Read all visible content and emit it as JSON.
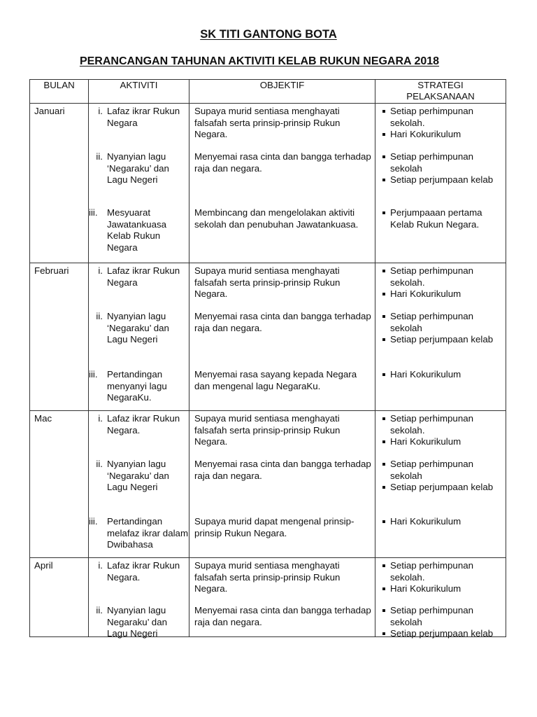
{
  "school": "SK TITI GANTONG BOTA",
  "title": "PERANCANGAN TAHUNAN AKTIVITI KELAB RUKUN NEGARA 2018",
  "headers": {
    "bulan": "BULAN",
    "aktiviti": "AKTIVITI",
    "objektif": "OBJEKTIF",
    "strategi": "STRATEGI PELAKSANAAN"
  },
  "rows": [
    {
      "month": "Januari",
      "items": [
        {
          "num": "i.",
          "activity": "Lafaz  ikrar Rukun Negara",
          "objective": "Supaya murid sentiasa menghayati falsafah serta prinsip-prinsip Rukun Negara.",
          "strategies": [
            "Setiap perhimpunan sekolah.",
            "Hari Kokurikulum"
          ]
        },
        {
          "num": "ii.",
          "activity": "Nyanyian lagu ‘Negaraku’ dan Lagu Negeri",
          "objective": "Menyemai rasa cinta dan bangga terhadap raja dan negara.",
          "strategies": [
            "Setiap perhimpunan sekolah",
            "Setiap perjumpaan kelab"
          ]
        },
        {
          "num": "iii.",
          "activity": "Mesyuarat Jawatankuasa Kelab Rukun Negara",
          "objective": "Membincang dan mengelolakan aktiviti sekolah dan penubuhan Jawatankuasa.",
          "strategies": [
            "Perjumpaaan pertama Kelab Rukun Negara."
          ]
        }
      ]
    },
    {
      "month": "Februari",
      "items": [
        {
          "num": "i.",
          "activity": "Lafaz  ikrar Rukun Negara",
          "objective": "Supaya murid sentiasa menghayati falsafah serta prinsip-prinsip Rukun Negara.",
          "strategies": [
            "Setiap perhimpunan sekolah.",
            "Hari Kokurikulum"
          ]
        },
        {
          "num": "ii.",
          "activity": "Nyanyian lagu ‘Negaraku’ dan Lagu Negeri",
          "objective": "Menyemai rasa cinta dan bangga terhadap raja dan negara.",
          "strategies": [
            "Setiap perhimpunan sekolah",
            "Setiap perjumpaan kelab"
          ]
        },
        {
          "num": "iii.",
          "activity": "Pertandingan menyanyi lagu NegaraKu.",
          "objective": "Menyemai rasa sayang kepada Negara dan mengenal lagu NegaraKu.",
          "strategies": [
            "Hari Kokurikulum"
          ]
        }
      ]
    },
    {
      "month": "Mac",
      "items": [
        {
          "num": "i.",
          "activity": "Lafaz  ikrar Rukun Negara.",
          "objective": "Supaya murid sentiasa menghayati falsafah serta prinsip-prinsip Rukun Negara.",
          "strategies": [
            "Setiap perhimpunan sekolah.",
            "Hari Kokurikulum"
          ]
        },
        {
          "num": "ii.",
          "activity": "Nyanyian lagu ‘Negaraku’ dan Lagu Negeri",
          "objective": "Menyemai rasa cinta dan bangga terhadap raja dan negara.",
          "strategies": [
            "Setiap perhimpunan sekolah",
            "Setiap perjumpaan kelab"
          ]
        },
        {
          "num": "iii.",
          "activity": "Pertandingan melafaz ikrar dalam Dwibahasa",
          "objective": "Supaya murid dapat mengenal prinsip-prinsip Rukun Negara.",
          "strategies": [
            "Hari Kokurikulum"
          ]
        }
      ]
    },
    {
      "month": "April",
      "items": [
        {
          "num": "i.",
          "activity": "Lafaz  ikrar Rukun Negara.",
          "objective": "Supaya murid sentiasa menghayati falsafah serta prinsip-prinsip Rukun Negara.",
          "strategies": [
            "Setiap perhimpunan sekolah.",
            "Hari Kokurikulum"
          ]
        },
        {
          "num": "ii.",
          "activity": "Nyanyian lagu Negaraku’ dan Lagu Negeri",
          "objective": "Menyemai rasa cinta dan bangga terhadap raja dan negara.",
          "strategies": [
            "Setiap perhimpunan sekolah",
            "Setiap perjumpaan kelab"
          ]
        }
      ]
    }
  ]
}
